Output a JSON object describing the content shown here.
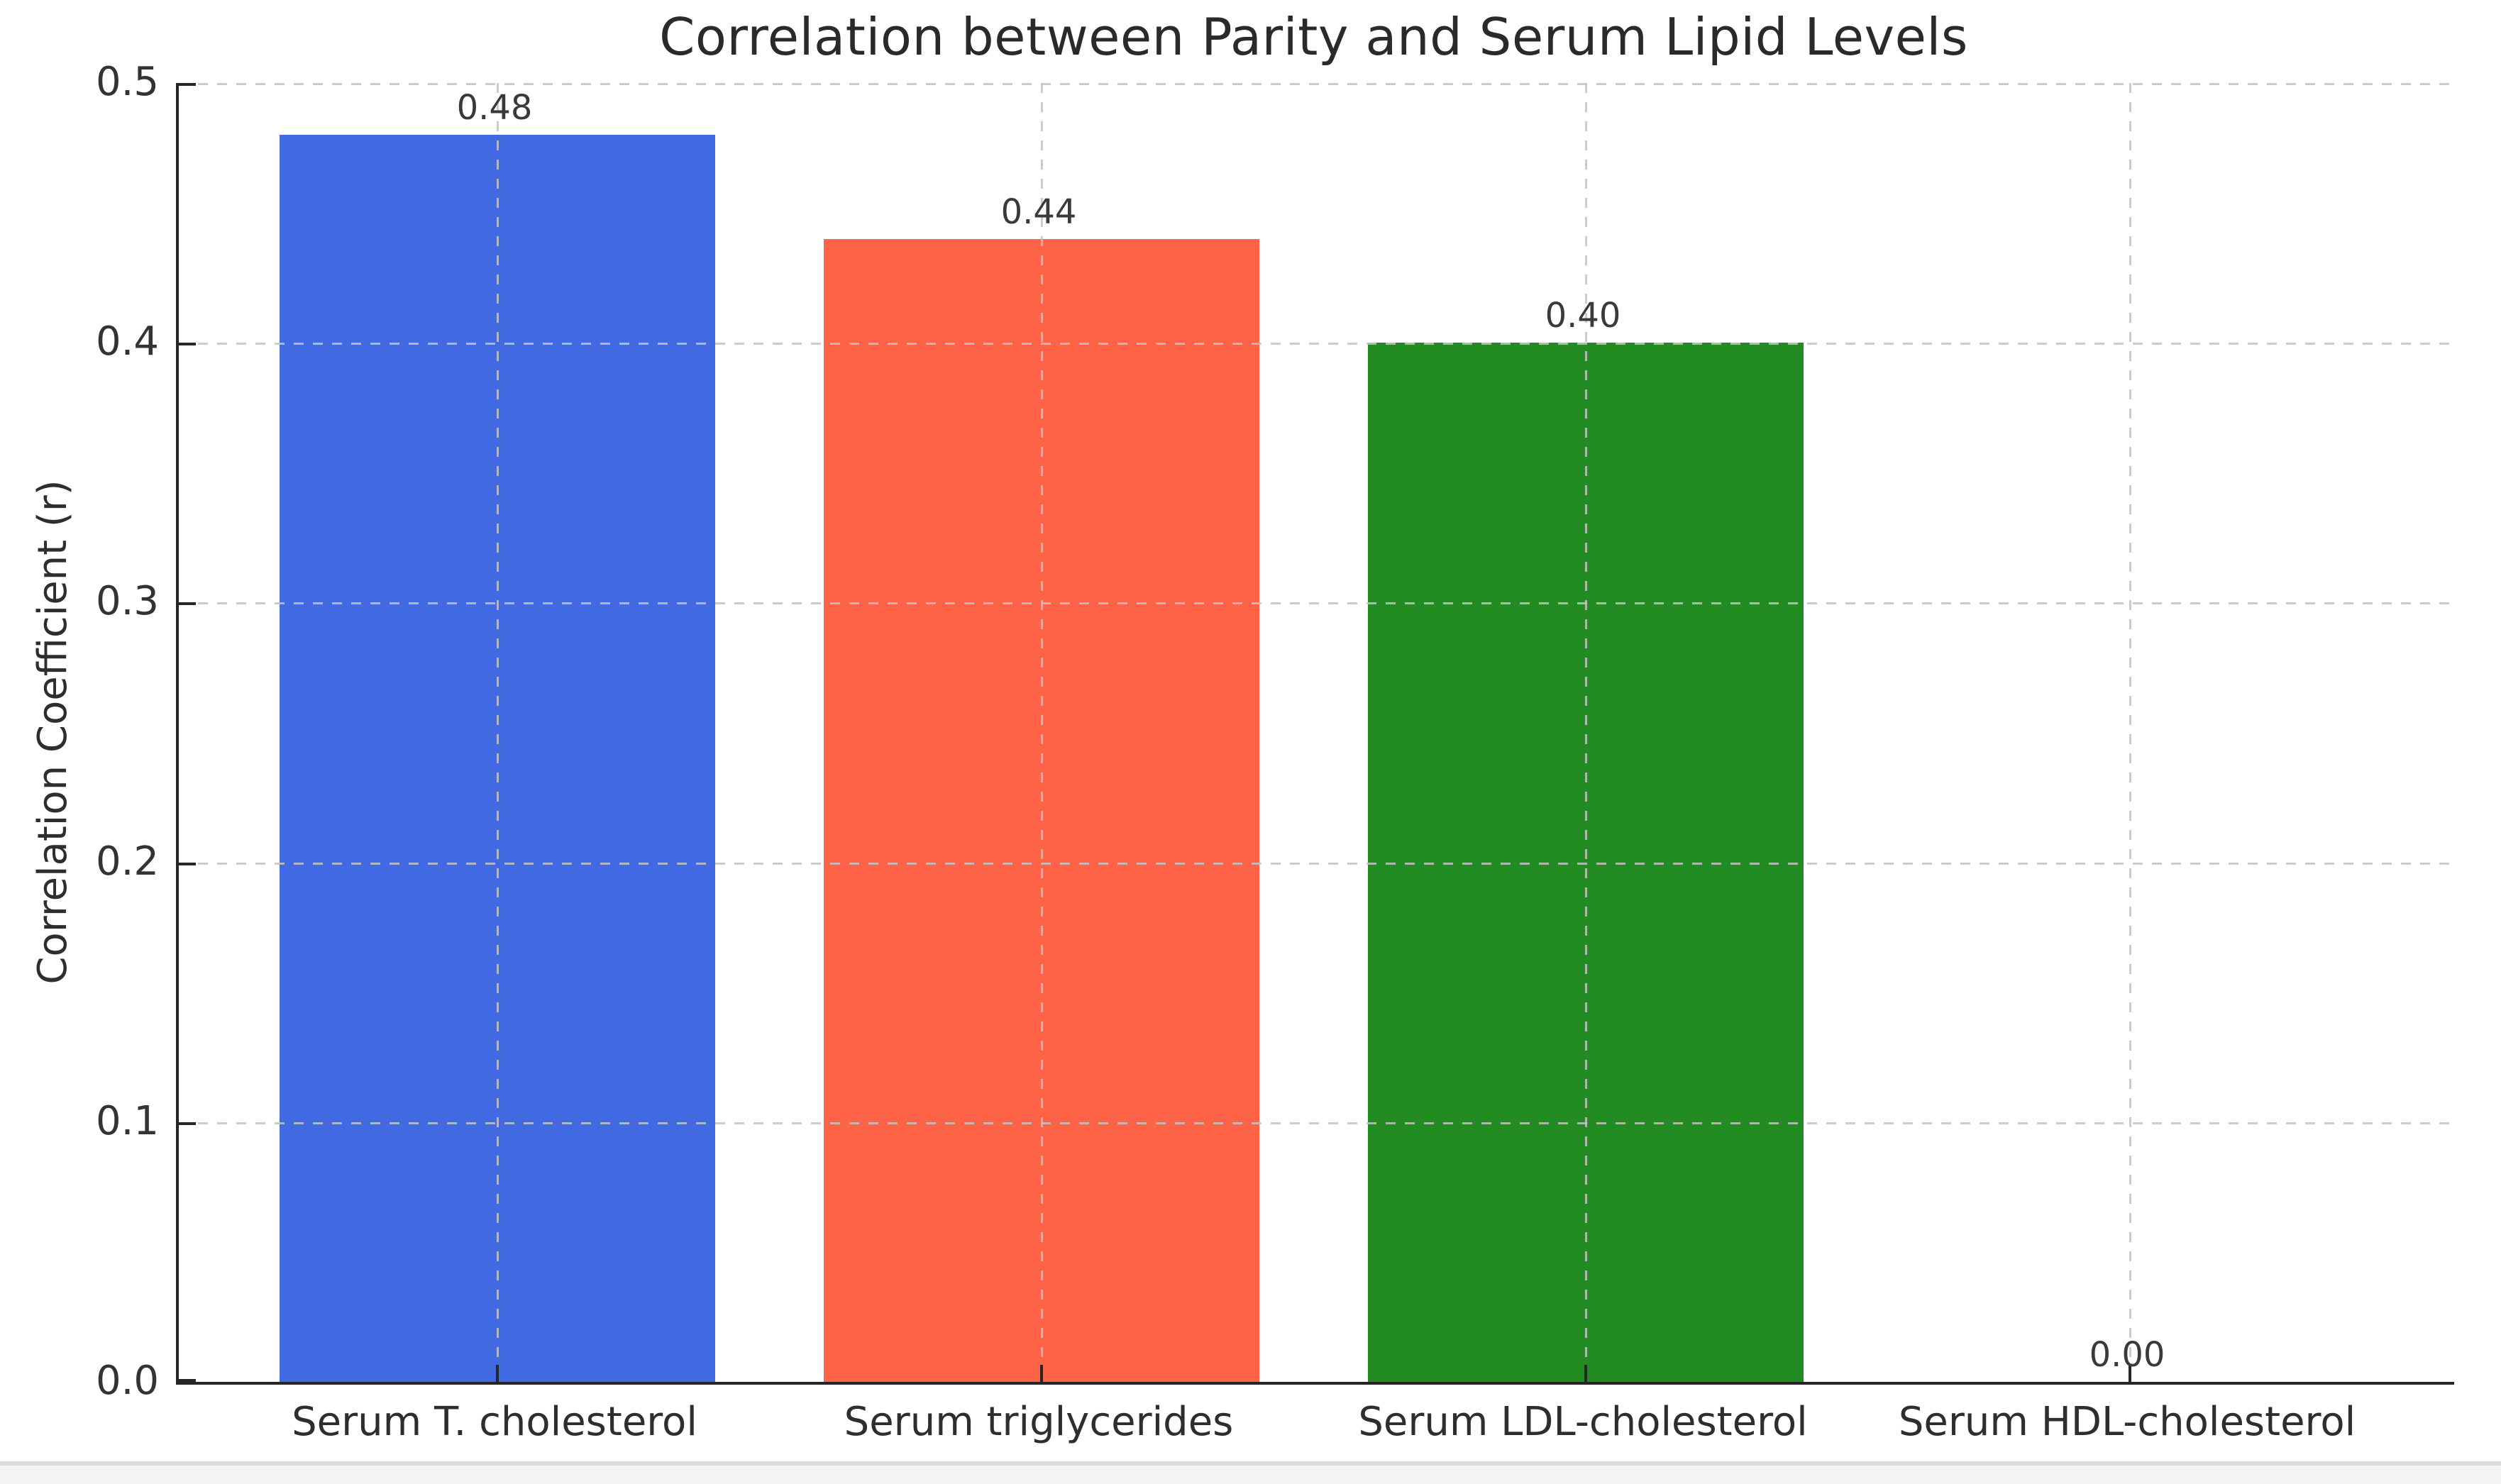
{
  "figure": {
    "background": "#ffffff",
    "footer_strip_color": "#f3f3f3"
  },
  "chart_data": {
    "type": "bar",
    "title": "Correlation between Parity and Serum Lipid Levels",
    "xlabel": "",
    "ylabel": "Correlation Coefficient (r)",
    "categories": [
      "Serum T. cholesterol",
      "Serum triglycerides",
      "Serum LDL-cholesterol",
      "Serum HDL-cholesterol"
    ],
    "values": [
      0.48,
      0.44,
      0.4,
      0.0
    ],
    "value_labels": [
      "0.48",
      "0.44",
      "0.40",
      "0.00"
    ],
    "bar_colors": [
      "#4169e1",
      "#ff6347",
      "#228b22",
      ""
    ],
    "yticks": [
      "0.0",
      "0.1",
      "0.2",
      "0.3",
      "0.4",
      "0.5"
    ],
    "ylim": [
      0,
      0.5
    ],
    "grid": "light gray dashed gridlines on both axes, drawn over bars",
    "legend": "none",
    "spines": "left and bottom only, dark; ticks point inward"
  }
}
